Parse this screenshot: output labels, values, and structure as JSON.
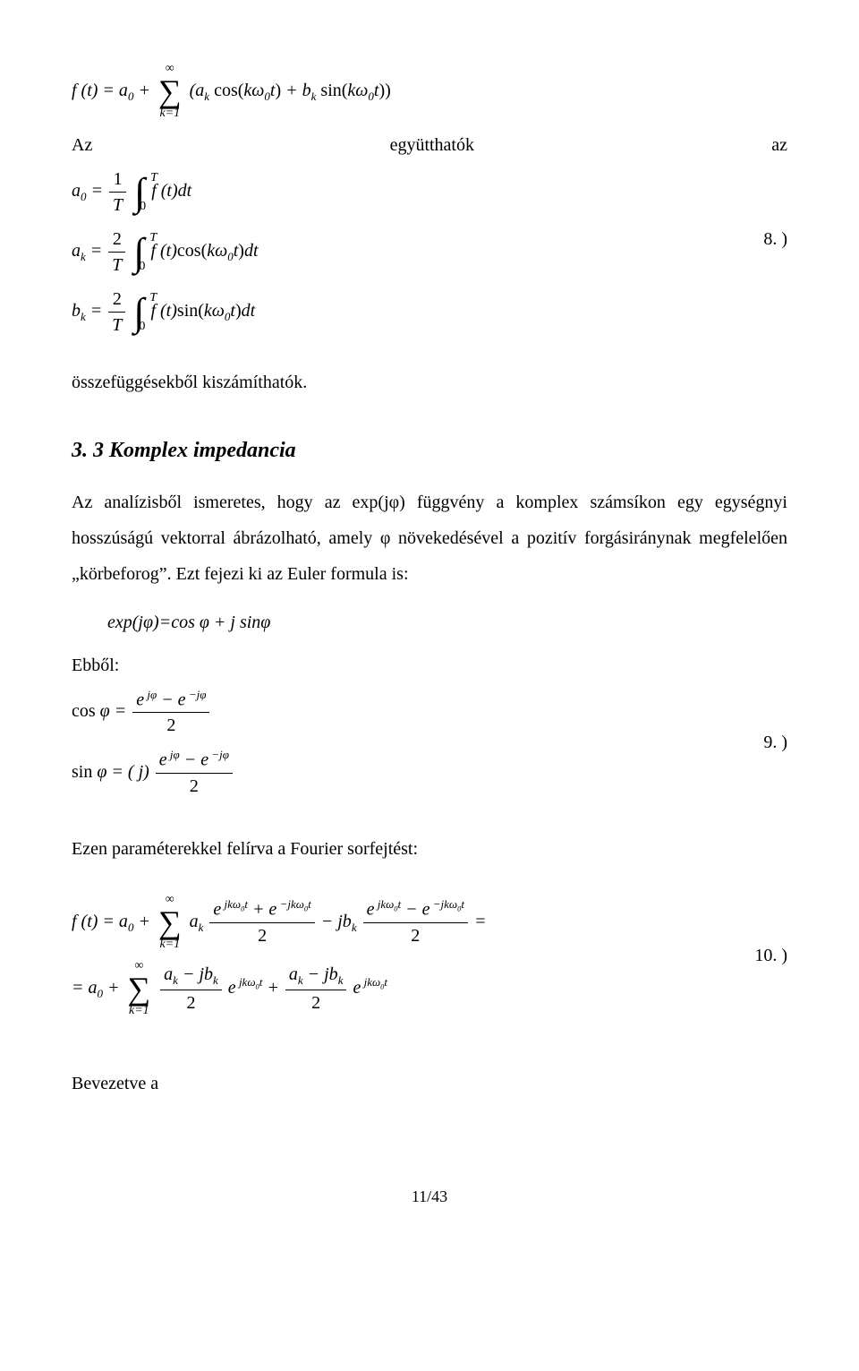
{
  "eq1": {
    "text_html": "f (t) = a<span class='sub'>0</span> + <span class='big-sum'><span class='u'>∞</span><span class='sym'>∑</span><span class='l'>k=1</span></span> (a<span class='sub'>k</span> <span class='upright'>cos(</span>kω<span class='sub'>0</span>t<span class='upright'>)</span> + b<span class='sub'>k</span> <span class='upright'>sin(</span>kω<span class='sub'>0</span>t<span class='upright'>))</span>"
  },
  "line_az": {
    "left": "Az",
    "mid": "együtthatók",
    "right": "az"
  },
  "eq2a": {
    "text_html": "a<span class='sub'>0</span> = <span class='frac'><span class='num'><span class='upright'>1</span></span><span class='den'>T</span></span> <span class='big-int'><span class='u'>T</span><span class='sym'>∫</span><span class='l'>0</span></span> f (t)dt"
  },
  "eq2b": {
    "text_html": "a<span class='sub'>k</span> = <span class='frac'><span class='num'><span class='upright'>2</span></span><span class='den'>T</span></span> <span class='big-int'><span class='u'>T</span><span class='sym'>∫</span><span class='l'>0</span></span> f (t)<span class='upright'>cos(</span>kω<span class='sub'>0</span>t<span class='upright'>)</span>dt",
    "num": "8. )"
  },
  "eq2c": {
    "text_html": "b<span class='sub'>k</span> = <span class='frac'><span class='num'><span class='upright'>2</span></span><span class='den'>T</span></span> <span class='big-int'><span class='u'>T</span><span class='sym'>∫</span><span class='l'>0</span></span> f (t)<span class='upright'>sin(</span>kω<span class='sub'>0</span>t<span class='upright'>)</span>dt"
  },
  "after_eq2": "összefüggésekből kiszámíthatók.",
  "heading33": "3. 3 Komplex impedancia",
  "para33": "Az analízisből ismeretes, hogy az exp(jφ) függvény a komplex számsíkon egy egységnyi hosszúságú vektorral ábrázolható, amely φ növekedésével a pozitív forgásiránynak megfelelően „körbeforog”. Ezt fejezi ki az Euler formula is:",
  "euler": "exp(jφ)=cos φ + j sinφ",
  "ebbol": "Ebből:",
  "eq9a": {
    "text_html": "<span class='upright'>cos</span> φ = <span class='frac'><span class='num'>e<span class='sup'> jφ</span> − e<span class='sup'> −jφ</span></span><span class='den'><span class='upright'>2</span></span></span>"
  },
  "eq9b": {
    "text_html": "<span class='upright'>sin</span> φ = ( j) <span class='frac'><span class='num'>e<span class='sup'> jφ</span> − e<span class='sup'> −jφ</span></span><span class='den'><span class='upright'>2</span></span></span>",
    "num": "9. )"
  },
  "para_fourier": "Ezen paraméterekkel felírva a Fourier sorfejtést:",
  "eq10a": {
    "text_html": "f (t) = a<span class='sub'>0</span> + <span class='big-sum'><span class='u'>∞</span><span class='sym'>∑</span><span class='l'>k=1</span></span> a<span class='sub'>k</span> <span class='frac'><span class='num'>e<span class='sup'> jkω<span class=\"sub\">0</span>t</span> + e<span class='sup'> −jkω<span class=\"sub\">0</span>t</span></span><span class='den'><span class='upright'>2</span></span></span> − jb<span class='sub'>k</span> <span class='frac'><span class='num'>e<span class='sup'> jkω<span class=\"sub\">0</span>t</span> − e<span class='sup'> −jkω<span class=\"sub\">0</span>t</span></span><span class='den'><span class='upright'>2</span></span></span> ="
  },
  "eq10b": {
    "text_html": "= a<span class='sub'>0</span> + <span class='big-sum'><span class='u'>∞</span><span class='sym'>∑</span><span class='l'>k=1</span></span> <span class='frac'><span class='num'>a<span class='sub'>k</span> − jb<span class='sub'>k</span></span><span class='den'><span class='upright'>2</span></span></span> e<span class='sup'> jkω<span class=\"sub\">0</span>t</span> + <span class='frac'><span class='num'>a<span class='sub'>k</span> − jb<span class='sub'>k</span></span><span class='den'><span class='upright'>2</span></span></span> e<span class='sup'> jkω<span class=\"sub\">0</span>t</span>",
    "num": "10. )"
  },
  "bevezetve": "Bevezetve a",
  "footer": "11/43"
}
